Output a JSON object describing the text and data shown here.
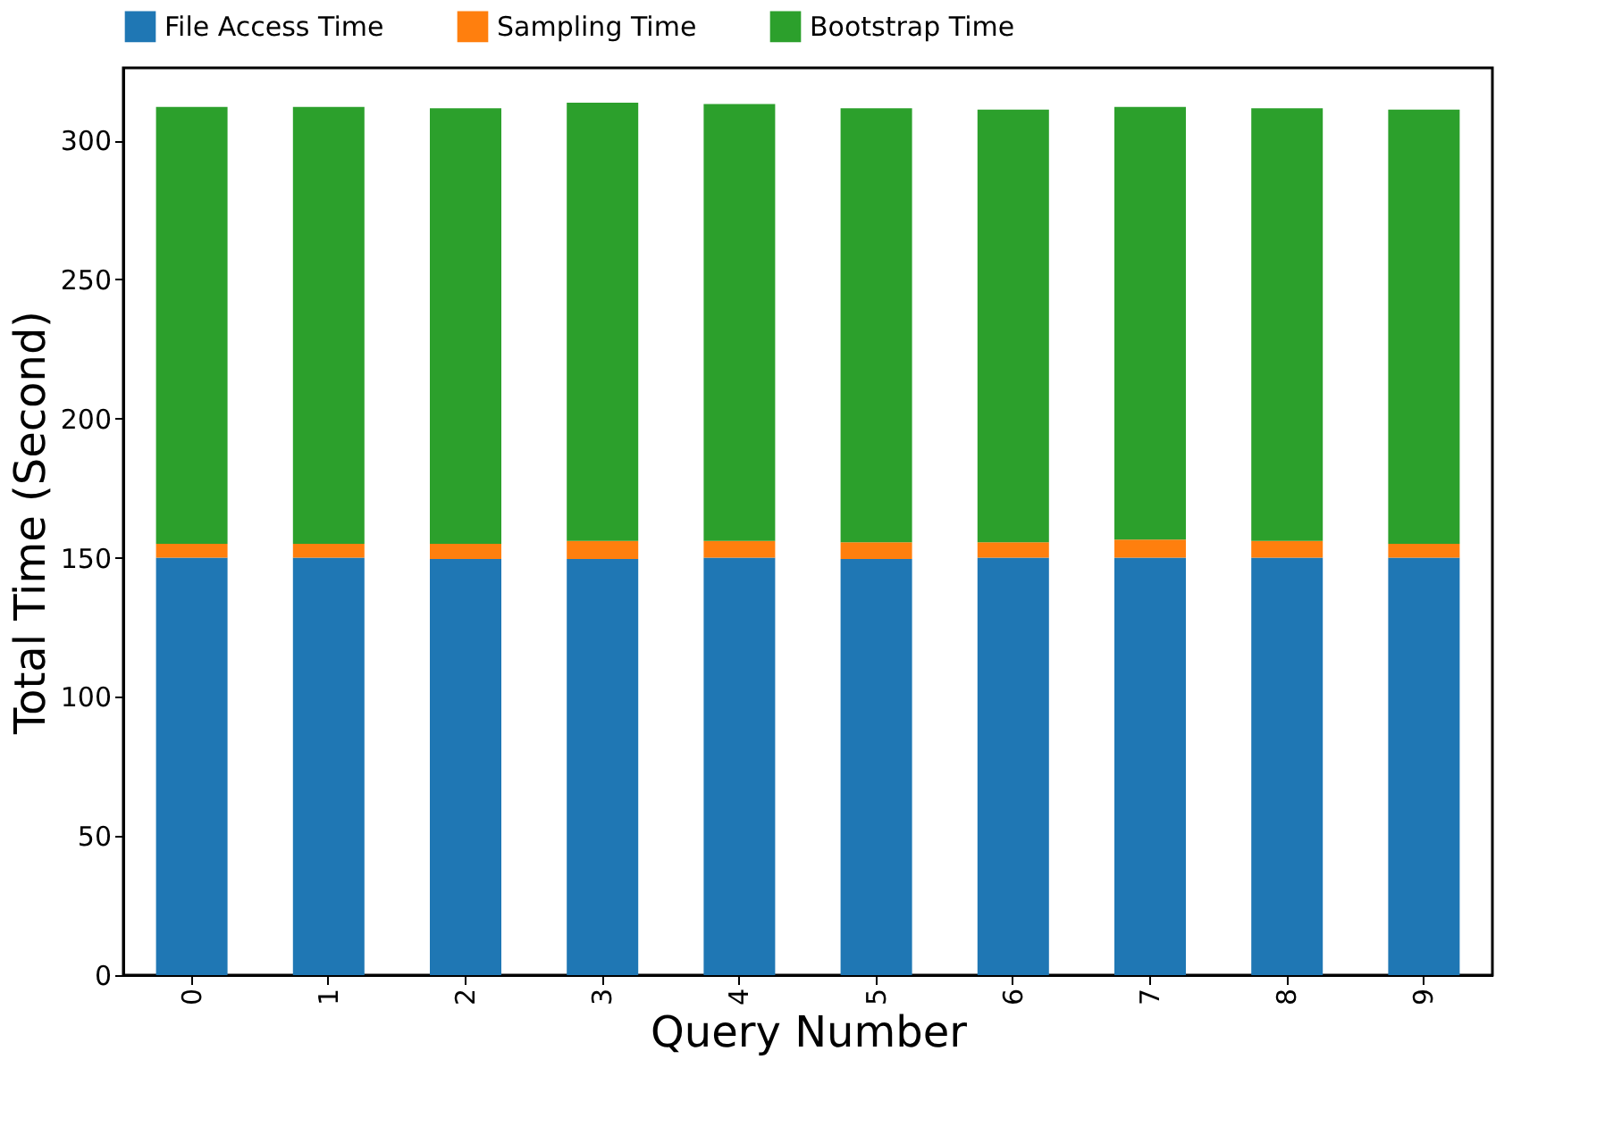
{
  "chart_data": {
    "type": "bar",
    "stacked": true,
    "xlabel": "Query Number",
    "ylabel": "Total Time (Second)",
    "categories": [
      "0",
      "1",
      "2",
      "3",
      "4",
      "5",
      "6",
      "7",
      "8",
      "9"
    ],
    "series": [
      {
        "name": "File Access Time",
        "color": "#1f77b4",
        "values": [
          150,
          150,
          149.5,
          149.5,
          150,
          149.5,
          150,
          150,
          150,
          150
        ]
      },
      {
        "name": "Sampling Time",
        "color": "#ff7f0e",
        "values": [
          5,
          5,
          5.5,
          6.5,
          6,
          6,
          5.5,
          6.5,
          6,
          5
        ]
      },
      {
        "name": "Bootstrap Time",
        "color": "#2ca02c",
        "values": [
          157,
          157,
          156.5,
          157.5,
          157,
          156,
          155.5,
          155.5,
          155.5,
          156
        ]
      }
    ],
    "ylim": [
      0,
      326
    ],
    "yticks": [
      0,
      50,
      100,
      150,
      200,
      250,
      300
    ],
    "grid": false,
    "legend": "top"
  }
}
